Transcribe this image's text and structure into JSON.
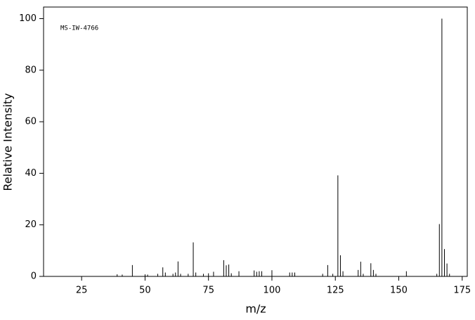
{
  "chart_data": {
    "type": "stem",
    "annotation": "MS-IW-4766",
    "xlabel": "m/z",
    "ylabel": "Relative Intensity",
    "xlim": [
      10,
      177
    ],
    "ylim": [
      0,
      104.5
    ],
    "xticks": [
      25,
      50,
      75,
      100,
      125,
      150,
      175
    ],
    "yticks": [
      0,
      20,
      40,
      60,
      80,
      100
    ],
    "color": "#000000",
    "x": [
      39,
      41,
      45,
      50,
      51,
      55,
      57,
      58,
      61,
      62,
      63,
      64,
      67,
      69,
      70,
      73,
      75,
      77,
      81,
      82,
      83,
      84,
      87,
      93,
      94,
      95,
      96,
      100,
      107,
      108,
      109,
      120,
      122,
      124,
      126,
      127,
      128,
      134,
      135,
      136,
      139,
      140,
      141,
      153,
      165,
      166,
      167,
      168,
      169,
      170
    ],
    "values": [
      0.8,
      0.7,
      4.4,
      0.8,
      0.7,
      1,
      3.5,
      1.5,
      1,
      1.5,
      5.8,
      1,
      1,
      13.2,
      1.5,
      1,
      1.2,
      1.8,
      6.3,
      4.3,
      4.6,
      1.2,
      2,
      2.3,
      1.8,
      2,
      2,
      2.4,
      1.5,
      1.5,
      1.5,
      1,
      4.4,
      1,
      39.2,
      8.2,
      2,
      2.5,
      5.7,
      1,
      5.1,
      2.5,
      1,
      2,
      1,
      20.3,
      100,
      10.6,
      5,
      1
    ]
  }
}
